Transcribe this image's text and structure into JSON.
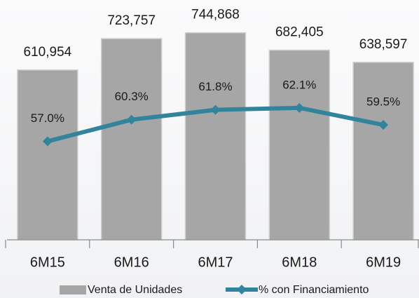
{
  "chart_data": {
    "type": "bar-line",
    "categories": [
      "6M15",
      "6M16",
      "6M17",
      "6M18",
      "6M19"
    ],
    "series": [
      {
        "name": "Venta de Unidades",
        "type": "bar",
        "color": "#a6a6a6",
        "values": [
          610954,
          723757,
          744868,
          682405,
          638597
        ],
        "value_labels": [
          "610,954",
          "723,757",
          "744,868",
          "682,405",
          "638,597"
        ]
      },
      {
        "name": "% con Financiamiento",
        "type": "line",
        "axis": "y2",
        "color": "#31849b",
        "values": [
          57.0,
          60.3,
          61.8,
          62.1,
          59.5
        ],
        "value_labels": [
          "57.0%",
          "60.3%",
          "61.8%",
          "62.1%",
          "59.5%"
        ]
      }
    ],
    "ylim": [
      0,
      850000
    ],
    "y2lim": [
      42,
      78
    ],
    "legend": "bottom"
  }
}
